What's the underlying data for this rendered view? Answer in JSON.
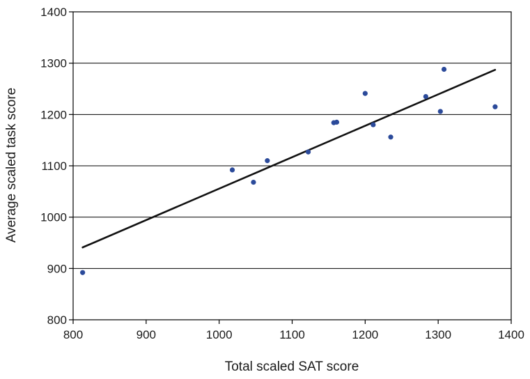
{
  "chart_data": {
    "type": "scatter",
    "title": "",
    "xlabel": "Total scaled SAT score",
    "ylabel": "Average scaled task score",
    "xlim": [
      800,
      1400
    ],
    "ylim": [
      800,
      1400
    ],
    "x_ticks": [
      800,
      900,
      1000,
      1100,
      1200,
      1300,
      1400
    ],
    "y_ticks": [
      800,
      900,
      1000,
      1100,
      1200,
      1300,
      1400
    ],
    "grid": "horizontal",
    "legend": "none",
    "colors": {
      "point": "#2b4a9a",
      "trendline": "#111111",
      "grid": "#000000"
    },
    "points": [
      {
        "x": 813,
        "y": 892
      },
      {
        "x": 1018,
        "y": 1092
      },
      {
        "x": 1047,
        "y": 1068
      },
      {
        "x": 1066,
        "y": 1110
      },
      {
        "x": 1122,
        "y": 1127
      },
      {
        "x": 1157,
        "y": 1184
      },
      {
        "x": 1161,
        "y": 1185
      },
      {
        "x": 1200,
        "y": 1241
      },
      {
        "x": 1211,
        "y": 1180
      },
      {
        "x": 1235,
        "y": 1156
      },
      {
        "x": 1283,
        "y": 1235
      },
      {
        "x": 1303,
        "y": 1206
      },
      {
        "x": 1308,
        "y": 1288
      },
      {
        "x": 1378,
        "y": 1215
      }
    ],
    "trendline": {
      "x": [
        813,
        1378
      ],
      "y": [
        941,
        1287
      ]
    }
  }
}
